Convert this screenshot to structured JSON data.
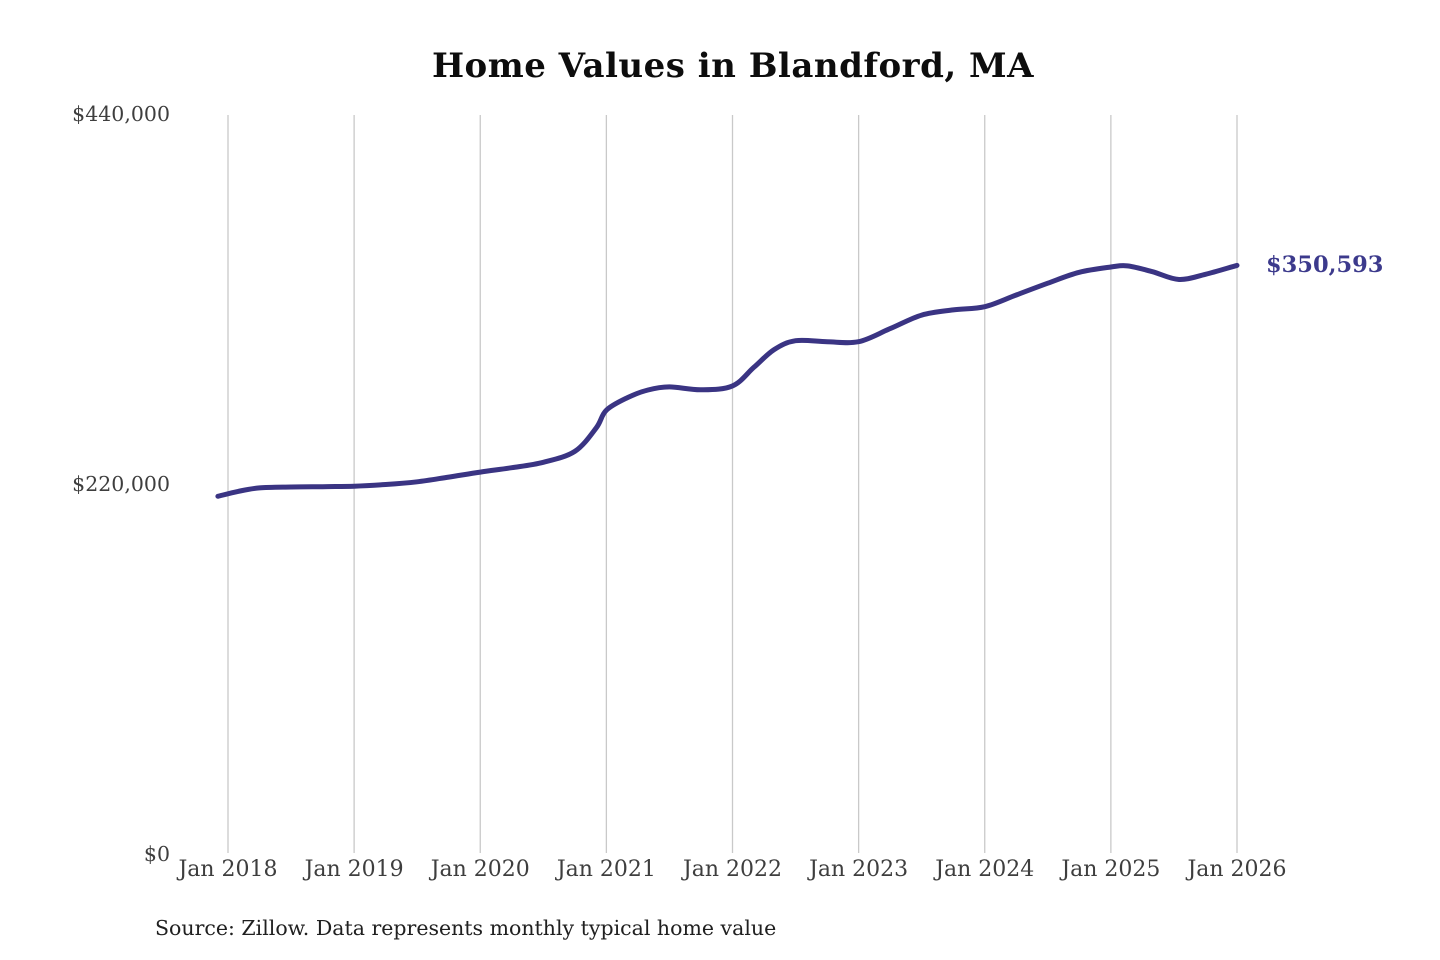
{
  "title": "Home Values in Blandford, MA",
  "latest_value_label": "$350,593",
  "source_note": "Source: Zillow. Data represents monthly typical home value",
  "colors": {
    "line": "#3a3483",
    "end_label": "#3c3a8c",
    "gridline": "#c9c9c9",
    "axis_text": "#3e3e3e",
    "title_text": "#0d0d0d",
    "background": "#ffffff"
  },
  "chart_data": {
    "type": "line",
    "title": "Home Values in Blandford, MA",
    "series_name": "Monthly typical home value",
    "xlabel": "",
    "ylabel": "",
    "legend": "none",
    "grid": "vertical-only",
    "ylim": [
      0,
      440000
    ],
    "xlim_decimal_years": [
      2017.9,
      2026.1
    ],
    "y_ticks": [
      {
        "label": "$0",
        "value": 0
      },
      {
        "label": "$220,000",
        "value": 220000
      },
      {
        "label": "$440,000",
        "value": 440000
      }
    ],
    "x_ticks": [
      {
        "label": "Jan 2018",
        "year": 2018
      },
      {
        "label": "Jan 2019",
        "year": 2019
      },
      {
        "label": "Jan 2020",
        "year": 2020
      },
      {
        "label": "Jan 2021",
        "year": 2021
      },
      {
        "label": "Jan 2022",
        "year": 2022
      },
      {
        "label": "Jan 2023",
        "year": 2023
      },
      {
        "label": "Jan 2024",
        "year": 2024
      },
      {
        "label": "Jan 2025",
        "year": 2025
      },
      {
        "label": "Jan 2026",
        "year": 2026
      }
    ],
    "x_decimal_years": [
      2017.92,
      2018.08,
      2018.25,
      2018.5,
      2018.75,
      2019.0,
      2019.25,
      2019.5,
      2019.75,
      2020.0,
      2020.25,
      2020.5,
      2020.75,
      2020.92,
      2021.0,
      2021.17,
      2021.33,
      2021.5,
      2021.75,
      2022.0,
      2022.17,
      2022.33,
      2022.5,
      2022.75,
      2023.0,
      2023.25,
      2023.5,
      2023.75,
      2024.0,
      2024.25,
      2024.5,
      2024.75,
      2025.0,
      2025.13,
      2025.33,
      2025.54,
      2025.75,
      2026.0
    ],
    "values": [
      213300,
      216200,
      218300,
      218800,
      219000,
      219300,
      220300,
      221900,
      224700,
      227700,
      230300,
      233500,
      240000,
      254000,
      264500,
      272000,
      276500,
      278300,
      276600,
      278900,
      290000,
      300500,
      305800,
      305200,
      305200,
      313000,
      321000,
      324100,
      326000,
      333000,
      340000,
      346500,
      349600,
      350300,
      346800,
      342200,
      345300,
      350593
    ],
    "end_annotation": {
      "label": "$350,593",
      "value": 350593,
      "x_decimal_year": 2026.0
    }
  }
}
